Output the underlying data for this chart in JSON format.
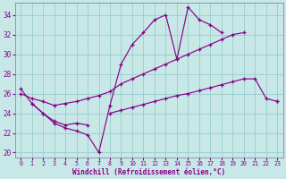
{
  "background_color": "#c8e8e8",
  "line_color": "#880088",
  "grid_color": "#99cccc",
  "xlabel": "Windchill (Refroidissement éolien,°C)",
  "xlabel_color": "#880088",
  "tick_color": "#880088",
  "xlim_min": -0.5,
  "xlim_max": 23.5,
  "ylim_min": 19.5,
  "ylim_max": 35.2,
  "yticks": [
    20,
    22,
    24,
    26,
    28,
    30,
    32,
    34
  ],
  "xticks": [
    0,
    1,
    2,
    3,
    4,
    5,
    6,
    7,
    8,
    9,
    10,
    11,
    12,
    13,
    14,
    15,
    16,
    17,
    18,
    19,
    20,
    21,
    22,
    23
  ],
  "lines": [
    {
      "x": [
        0,
        1,
        2,
        3,
        4,
        5,
        6,
        7,
        8,
        9,
        10,
        11,
        12,
        13,
        14,
        15,
        16,
        17,
        18,
        19,
        20,
        21,
        22,
        23
      ],
      "y": [
        26.5,
        25.0,
        24.0,
        23.0,
        22.5,
        22.2,
        21.8,
        20.0,
        24.8,
        29.0,
        31.0,
        32.2,
        33.5,
        34.0,
        29.5,
        34.8,
        33.5,
        33.0,
        32.2,
        null,
        null,
        null,
        null,
        null
      ]
    },
    {
      "x": [
        0,
        1,
        2,
        3,
        4,
        5,
        6,
        7,
        8,
        9,
        10,
        11,
        12,
        13,
        14,
        15,
        16,
        17,
        18,
        19,
        20,
        21,
        22,
        23
      ],
      "y": [
        26.0,
        25.5,
        25.2,
        24.8,
        25.0,
        25.2,
        25.5,
        25.8,
        26.2,
        27.0,
        27.5,
        28.0,
        28.5,
        29.0,
        29.5,
        30.0,
        30.5,
        31.0,
        31.5,
        32.0,
        32.2,
        null,
        null,
        25.2
      ]
    },
    {
      "x": [
        0,
        1,
        2,
        3,
        4,
        5,
        6,
        7,
        8,
        9,
        10,
        11,
        12,
        13,
        14,
        15,
        16,
        17,
        18,
        19,
        20,
        21,
        22,
        23
      ],
      "y": [
        null,
        25.0,
        24.0,
        23.2,
        22.8,
        23.0,
        22.8,
        null,
        24.0,
        24.3,
        24.6,
        24.9,
        25.2,
        25.5,
        25.8,
        26.0,
        26.3,
        26.6,
        26.9,
        27.2,
        27.5,
        27.5,
        25.5,
        25.2
      ]
    }
  ]
}
